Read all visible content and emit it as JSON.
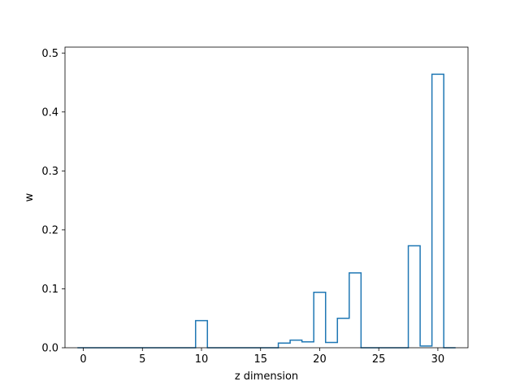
{
  "chart_data": {
    "type": "step",
    "xlabel": "z dimension",
    "ylabel": "w",
    "xlim": [
      -1.55,
      32.55
    ],
    "ylim": [
      0,
      0.51
    ],
    "x_ticks": [
      0,
      5,
      10,
      15,
      20,
      25,
      30
    ],
    "y_ticks": [
      0.0,
      0.1,
      0.2,
      0.3,
      0.4,
      0.5
    ],
    "x_tick_labels": [
      "0",
      "5",
      "10",
      "15",
      "20",
      "25",
      "30"
    ],
    "y_tick_labels": [
      "0.0",
      "0.1",
      "0.2",
      "0.3",
      "0.4",
      "0.5"
    ],
    "grid": false,
    "line_color": "#1f77b4",
    "x": [
      0,
      1,
      2,
      3,
      4,
      5,
      6,
      7,
      8,
      9,
      10,
      11,
      12,
      13,
      14,
      15,
      16,
      17,
      18,
      19,
      20,
      21,
      22,
      23,
      24,
      25,
      26,
      27,
      28,
      29,
      30,
      31
    ],
    "values": [
      0,
      0,
      0,
      0,
      0,
      0,
      0,
      0,
      0,
      0,
      0.046,
      0,
      0,
      0,
      0,
      0,
      0,
      0.008,
      0.013,
      0.01,
      0.094,
      0.009,
      0.05,
      0.127,
      0,
      0,
      0,
      0,
      0.173,
      0.003,
      0.464,
      0
    ]
  }
}
